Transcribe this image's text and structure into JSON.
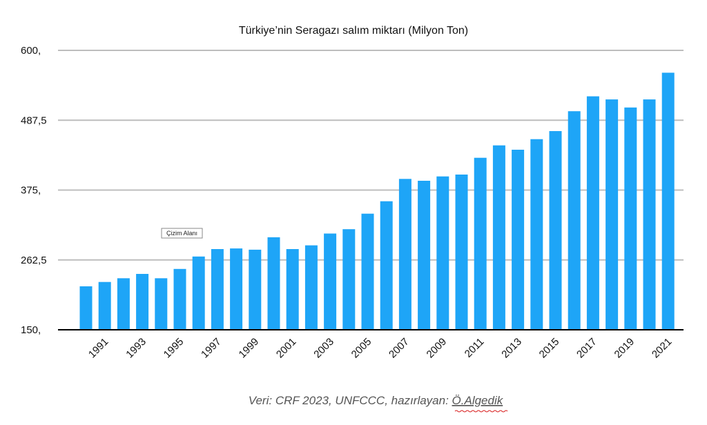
{
  "chart_data": {
    "type": "bar",
    "title": "Türkiye’nin Seragazı salım miktarı (Milyon Ton)",
    "xlabel": "",
    "ylabel": "",
    "ylim": [
      150,
      600
    ],
    "y_ticks": [
      {
        "value": 150,
        "label": "150,"
      },
      {
        "value": 262.5,
        "label": "262,5"
      },
      {
        "value": 375,
        "label": "375,"
      },
      {
        "value": 487.5,
        "label": "487,5"
      },
      {
        "value": 600,
        "label": "600,"
      }
    ],
    "grid": true,
    "bar_color": "#1ea5f7",
    "categories": [
      "1990",
      "1991",
      "1992",
      "1993",
      "1994",
      "1995",
      "1996",
      "1997",
      "1998",
      "1999",
      "2000",
      "2001",
      "2002",
      "2003",
      "2004",
      "2005",
      "2006",
      "2007",
      "2008",
      "2009",
      "2010",
      "2011",
      "2012",
      "2013",
      "2014",
      "2015",
      "2016",
      "2017",
      "2018",
      "2019",
      "2020",
      "2021"
    ],
    "shown_x_labels": [
      "1991",
      "1993",
      "1995",
      "1997",
      "1999",
      "2001",
      "2003",
      "2005",
      "2007",
      "2009",
      "2011",
      "2013",
      "2015",
      "2017",
      "2019",
      "2021"
    ],
    "values": [
      220,
      227,
      233,
      240,
      233,
      248,
      268,
      280,
      281,
      279,
      299,
      280,
      286,
      305,
      312,
      337,
      357,
      393,
      390,
      397,
      400,
      427,
      447,
      440,
      457,
      470,
      502,
      526,
      521,
      508,
      521,
      564
    ]
  },
  "tooltip": {
    "label": "Çizim Alanı"
  },
  "source_note": {
    "prefix": "Veri: CRF 2023, UNFCCC, hazırlayan: ",
    "author": "Ö.Algedik"
  }
}
